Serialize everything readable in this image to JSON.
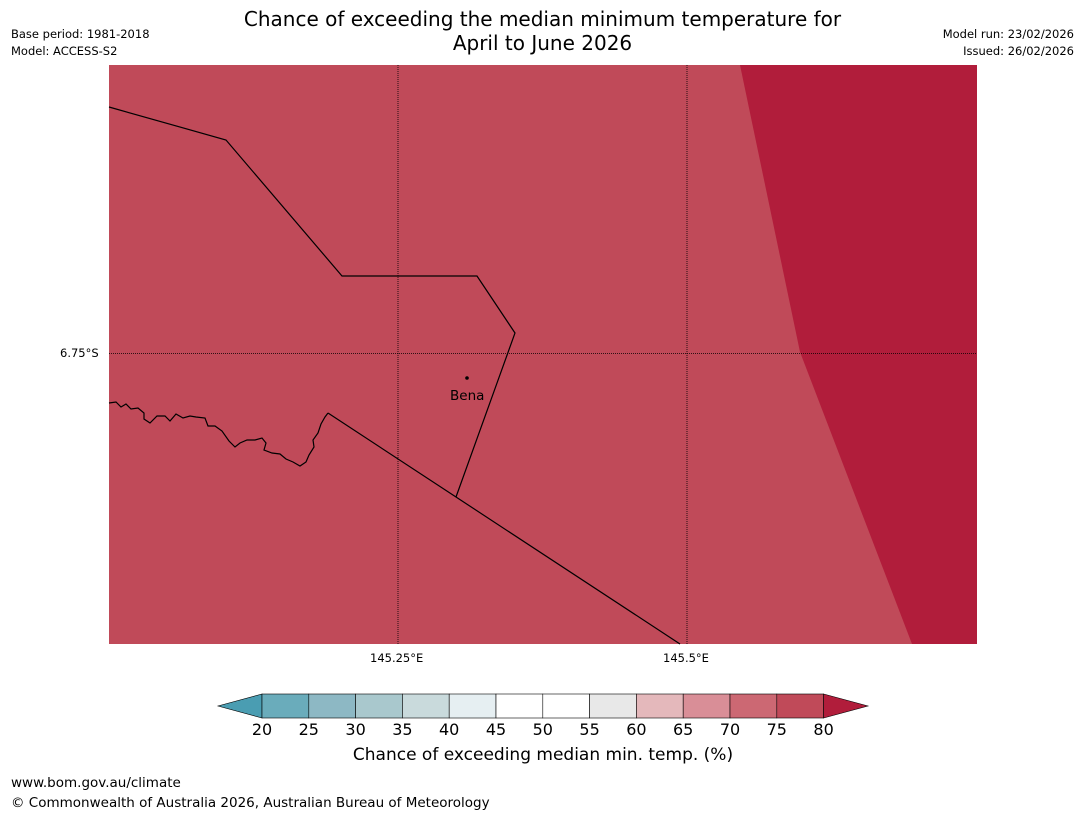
{
  "header": {
    "title_line1": "Chance of exceeding the median minimum temperature for",
    "title_line2": "April to June 2026",
    "base_period": "Base period: 1981-2018",
    "model": "Model: ACCESS-S2",
    "model_run": "Model run: 23/02/2026",
    "issued": "Issued: 26/02/2026"
  },
  "map": {
    "lat_label": "6.75°S",
    "lon_labels": [
      "145.25°E",
      "145.5°E"
    ],
    "place": {
      "name": "Bena",
      "icon": "location-dot-icon"
    },
    "region_colors": {
      "band_75_80": "#c04a59",
      "above_80": "#b11d3b"
    }
  },
  "legend": {
    "ticks": [
      "20",
      "25",
      "30",
      "35",
      "40",
      "45",
      "50",
      "55",
      "60",
      "65",
      "70",
      "75",
      "80"
    ],
    "label": "Chance of exceeding median min. temp. (%)",
    "colors": [
      "#6aacbb",
      "#8db8c4",
      "#a9c8cd",
      "#c9dadc",
      "#e6eff2",
      "#ffffff",
      "#ffffff",
      "#e8e8e8",
      "#e4b8bb",
      "#d98e97",
      "#cc6873",
      "#c04a59"
    ],
    "under_color": "#4a9db2",
    "over_color": "#b11d3b"
  },
  "footer": {
    "url": "www.bom.gov.au/climate",
    "copyright": "© Commonwealth of Australia 2026, Australian Bureau of Meteorology"
  }
}
